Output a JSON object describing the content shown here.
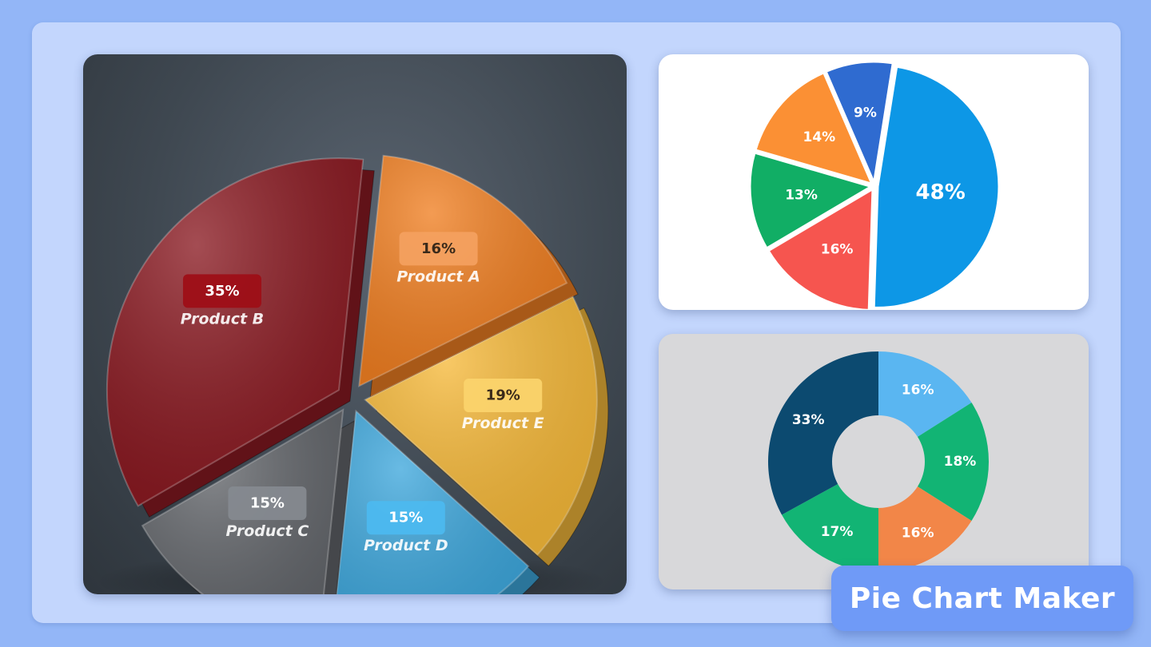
{
  "brand": {
    "label": "Pie Chart Maker"
  },
  "chart_data": [
    {
      "type": "pie",
      "style": "3d-exploded",
      "categories": [
        "Product A",
        "Product E",
        "Product D",
        "Product C",
        "Product B"
      ],
      "values": [
        16,
        19,
        15,
        15,
        35
      ],
      "labels": [
        "16%",
        "19%",
        "15%",
        "15%",
        "35%"
      ],
      "colors": [
        "#f07f22",
        "#f6b93a",
        "#3ea7dc",
        "#63666b",
        "#8a1a22"
      ],
      "label_colors": [
        "#f4a160",
        "#fbd46c",
        "#4cbaf0",
        "#868a90",
        "#9e0d16"
      ]
    },
    {
      "type": "pie",
      "values": [
        48,
        16,
        13,
        14,
        9
      ],
      "labels": [
        "48%",
        "16%",
        "13%",
        "14%",
        "9%"
      ],
      "colors": [
        "#0d97e6",
        "#f6554f",
        "#11ae65",
        "#fb9034",
        "#2f6bd0"
      ]
    },
    {
      "type": "pie",
      "style": "donut",
      "values": [
        16,
        18,
        16,
        17,
        33
      ],
      "labels": [
        "16%",
        "18%",
        "16%",
        "17%",
        "33%"
      ],
      "colors": [
        "#5ab6f1",
        "#12b474",
        "#f28648",
        "#12b474",
        "#0c4a70"
      ]
    }
  ]
}
